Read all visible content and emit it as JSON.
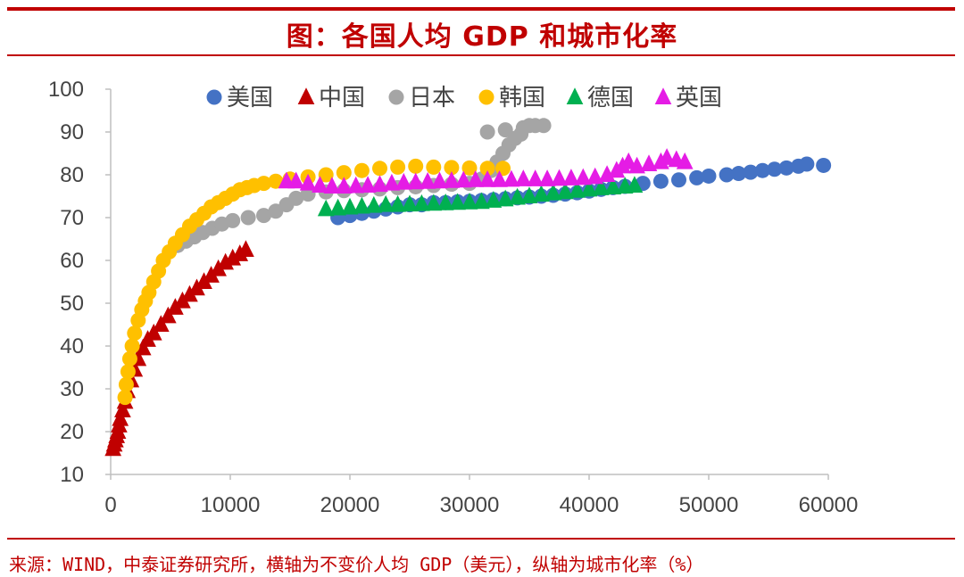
{
  "title": "图：各国人均 GDP 和城市化率",
  "source": "来源：WIND，中泰证券研究所，横轴为不变价人均 GDP（美元），纵轴为城市化率（%）",
  "chart_data": {
    "type": "scatter",
    "title": "图：各国人均 GDP 和城市化率",
    "xlabel": "",
    "ylabel": "",
    "xlim": [
      0,
      60000
    ],
    "ylim": [
      10,
      100
    ],
    "x_ticks": [
      "0",
      "10000",
      "20000",
      "30000",
      "40000",
      "50000",
      "60000"
    ],
    "y_ticks": [
      "10",
      "20",
      "30",
      "40",
      "50",
      "60",
      "70",
      "80",
      "90",
      "100"
    ],
    "grid": false,
    "legend_position": "top",
    "series": [
      {
        "name": "美国",
        "marker": "circle",
        "color": "#4472c4",
        "points": [
          [
            19000,
            70.0
          ],
          [
            20000,
            70.5
          ],
          [
            21000,
            71.0
          ],
          [
            22000,
            71.5
          ],
          [
            23000,
            72.0
          ],
          [
            24000,
            72.5
          ],
          [
            25000,
            73.0
          ],
          [
            26000,
            73.0
          ],
          [
            27000,
            73.5
          ],
          [
            28000,
            73.5
          ],
          [
            29000,
            73.7
          ],
          [
            30000,
            73.8
          ],
          [
            31000,
            74.0
          ],
          [
            32000,
            74.2
          ],
          [
            33000,
            74.4
          ],
          [
            34000,
            74.6
          ],
          [
            35000,
            74.8
          ],
          [
            36000,
            75.0
          ],
          [
            37000,
            75.2
          ],
          [
            38000,
            75.5
          ],
          [
            39000,
            75.8
          ],
          [
            40000,
            76.2
          ],
          [
            41000,
            76.6
          ],
          [
            42000,
            77.0
          ],
          [
            43000,
            77.3
          ],
          [
            44500,
            78.0
          ],
          [
            46000,
            78.5
          ],
          [
            47500,
            78.8
          ],
          [
            49000,
            79.3
          ],
          [
            50000,
            79.7
          ],
          [
            51500,
            80.0
          ],
          [
            52500,
            80.3
          ],
          [
            53500,
            80.6
          ],
          [
            54500,
            81.0
          ],
          [
            55500,
            81.3
          ],
          [
            56500,
            81.6
          ],
          [
            57500,
            82.0
          ],
          [
            58200,
            82.5
          ],
          [
            59600,
            82.2
          ]
        ]
      },
      {
        "name": "中国",
        "marker": "triangle",
        "color": "#c00000",
        "points": [
          [
            200,
            16.0
          ],
          [
            300,
            17.0
          ],
          [
            400,
            18.0
          ],
          [
            500,
            19.0
          ],
          [
            600,
            20.0
          ],
          [
            700,
            21.5
          ],
          [
            800,
            23.0
          ],
          [
            1000,
            25.0
          ],
          [
            1200,
            27.0
          ],
          [
            1400,
            29.5
          ],
          [
            1700,
            32.0
          ],
          [
            2000,
            34.5
          ],
          [
            2300,
            37.0
          ],
          [
            2700,
            39.5
          ],
          [
            3100,
            41.5
          ],
          [
            3600,
            43.0
          ],
          [
            4200,
            45.0
          ],
          [
            4800,
            47.0
          ],
          [
            5400,
            49.0
          ],
          [
            6000,
            50.5
          ],
          [
            6600,
            52.0
          ],
          [
            7200,
            53.5
          ],
          [
            7800,
            55.0
          ],
          [
            8400,
            56.5
          ],
          [
            9000,
            58.0
          ],
          [
            9600,
            59.5
          ],
          [
            10200,
            60.5
          ],
          [
            10800,
            61.5
          ],
          [
            11300,
            62.5
          ]
        ]
      },
      {
        "name": "日本",
        "marker": "circle",
        "color": "#a5a5a5",
        "points": [
          [
            5600,
            63.5
          ],
          [
            6300,
            64.5
          ],
          [
            7000,
            65.5
          ],
          [
            7700,
            66.5
          ],
          [
            8500,
            67.5
          ],
          [
            9300,
            68.5
          ],
          [
            10200,
            69.3
          ],
          [
            11500,
            70.0
          ],
          [
            12800,
            70.5
          ],
          [
            13800,
            71.5
          ],
          [
            14700,
            73.0
          ],
          [
            15500,
            74.5
          ],
          [
            16500,
            75.5
          ],
          [
            18000,
            76.0
          ],
          [
            19500,
            76.3
          ],
          [
            21000,
            76.5
          ],
          [
            22500,
            76.7
          ],
          [
            24000,
            77.0
          ],
          [
            25500,
            77.2
          ],
          [
            27000,
            77.5
          ],
          [
            28500,
            77.8
          ],
          [
            30000,
            78.0
          ],
          [
            31000,
            79.0
          ],
          [
            31800,
            81.0
          ],
          [
            32300,
            83.0
          ],
          [
            32800,
            85.0
          ],
          [
            33300,
            87.0
          ],
          [
            33800,
            88.5
          ],
          [
            34300,
            89.5
          ],
          [
            31500,
            90.0
          ],
          [
            33000,
            90.5
          ],
          [
            34500,
            91.0
          ],
          [
            35000,
            91.5
          ],
          [
            35500,
            91.5
          ],
          [
            36200,
            91.5
          ]
        ]
      },
      {
        "name": "韩国",
        "marker": "circle",
        "color": "#ffc000",
        "points": [
          [
            1200,
            28.0
          ],
          [
            1300,
            31.0
          ],
          [
            1450,
            34.0
          ],
          [
            1600,
            37.0
          ],
          [
            1800,
            40.0
          ],
          [
            2000,
            43.0
          ],
          [
            2300,
            46.0
          ],
          [
            2600,
            48.5
          ],
          [
            2900,
            50.5
          ],
          [
            3200,
            52.5
          ],
          [
            3600,
            55.0
          ],
          [
            4000,
            57.5
          ],
          [
            4400,
            60.0
          ],
          [
            4900,
            62.0
          ],
          [
            5400,
            64.0
          ],
          [
            6000,
            66.0
          ],
          [
            6600,
            68.0
          ],
          [
            7200,
            69.5
          ],
          [
            7800,
            71.0
          ],
          [
            8400,
            72.5
          ],
          [
            9000,
            73.5
          ],
          [
            9600,
            74.5
          ],
          [
            10200,
            75.5
          ],
          [
            10800,
            76.5
          ],
          [
            11400,
            77.0
          ],
          [
            12000,
            77.5
          ],
          [
            12800,
            78.0
          ],
          [
            13800,
            78.5
          ],
          [
            15000,
            79.0
          ],
          [
            16500,
            79.5
          ],
          [
            18000,
            80.0
          ],
          [
            19500,
            80.5
          ],
          [
            21000,
            81.0
          ],
          [
            22500,
            81.5
          ],
          [
            24000,
            81.8
          ],
          [
            25500,
            82.0
          ],
          [
            27000,
            81.8
          ],
          [
            28500,
            81.7
          ],
          [
            30000,
            81.6
          ],
          [
            31500,
            81.5
          ],
          [
            32800,
            81.5
          ]
        ]
      },
      {
        "name": "德国",
        "marker": "triangle",
        "color": "#00b050",
        "points": [
          [
            18000,
            72.0
          ],
          [
            19000,
            72.2
          ],
          [
            20000,
            72.4
          ],
          [
            21000,
            72.6
          ],
          [
            22000,
            72.8
          ],
          [
            23000,
            73.0
          ],
          [
            24000,
            73.0
          ],
          [
            25000,
            73.1
          ],
          [
            26000,
            73.2
          ],
          [
            27000,
            73.3
          ],
          [
            28000,
            73.4
          ],
          [
            29000,
            73.5
          ],
          [
            30000,
            73.6
          ],
          [
            31000,
            73.7
          ],
          [
            32000,
            74.0
          ],
          [
            33000,
            74.3
          ],
          [
            34000,
            74.7
          ],
          [
            35000,
            75.0
          ],
          [
            36000,
            75.4
          ],
          [
            37000,
            75.7
          ],
          [
            38000,
            76.0
          ],
          [
            39000,
            76.3
          ],
          [
            40000,
            76.6
          ],
          [
            41000,
            76.9
          ],
          [
            42000,
            77.1
          ],
          [
            43000,
            77.3
          ],
          [
            43800,
            77.5
          ]
        ]
      },
      {
        "name": "英国",
        "marker": "triangle",
        "color": "#e51ce5",
        "points": [
          [
            14700,
            78.5
          ],
          [
            15500,
            78.5
          ],
          [
            16500,
            78.0
          ],
          [
            17500,
            77.5
          ],
          [
            18500,
            77.3
          ],
          [
            19500,
            77.3
          ],
          [
            20500,
            77.4
          ],
          [
            21500,
            77.5
          ],
          [
            22500,
            77.7
          ],
          [
            23500,
            78.0
          ],
          [
            24500,
            78.2
          ],
          [
            25500,
            78.3
          ],
          [
            26500,
            78.4
          ],
          [
            27500,
            78.5
          ],
          [
            28500,
            78.6
          ],
          [
            29500,
            78.7
          ],
          [
            30500,
            78.8
          ],
          [
            31500,
            78.8
          ],
          [
            32500,
            78.8
          ],
          [
            33500,
            78.9
          ],
          [
            34500,
            79.0
          ],
          [
            35500,
            79.0
          ],
          [
            36500,
            79.0
          ],
          [
            37500,
            79.1
          ],
          [
            38500,
            79.2
          ],
          [
            39500,
            79.3
          ],
          [
            40500,
            79.5
          ],
          [
            41500,
            80.0
          ],
          [
            42300,
            81.0
          ],
          [
            42800,
            82.0
          ],
          [
            43300,
            83.0
          ],
          [
            44000,
            82.0
          ],
          [
            45000,
            82.5
          ],
          [
            46000,
            83.0
          ],
          [
            46500,
            84.0
          ],
          [
            47300,
            83.5
          ],
          [
            48000,
            83.0
          ]
        ]
      }
    ]
  }
}
